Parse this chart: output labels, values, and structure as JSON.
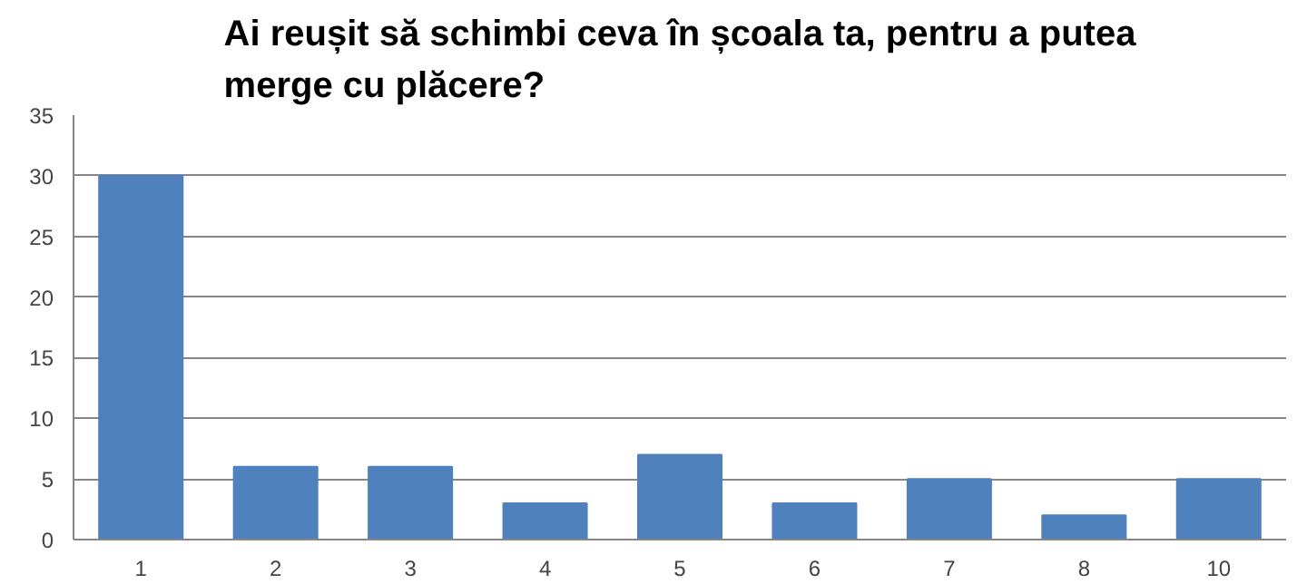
{
  "chart_data": {
    "type": "bar",
    "title": "Ai reușit să schimbi ceva în școala ta, pentru a putea merge cu plăcere?",
    "categories": [
      "1",
      "2",
      "3",
      "4",
      "5",
      "6",
      "7",
      "8",
      "10"
    ],
    "values": [
      30,
      6,
      6,
      3,
      7,
      3,
      5,
      2,
      5
    ],
    "color": "#4f81bd",
    "ylim": [
      0,
      35
    ],
    "yticks": [
      0,
      5,
      10,
      15,
      20,
      25,
      30,
      35
    ],
    "grid": "y"
  }
}
